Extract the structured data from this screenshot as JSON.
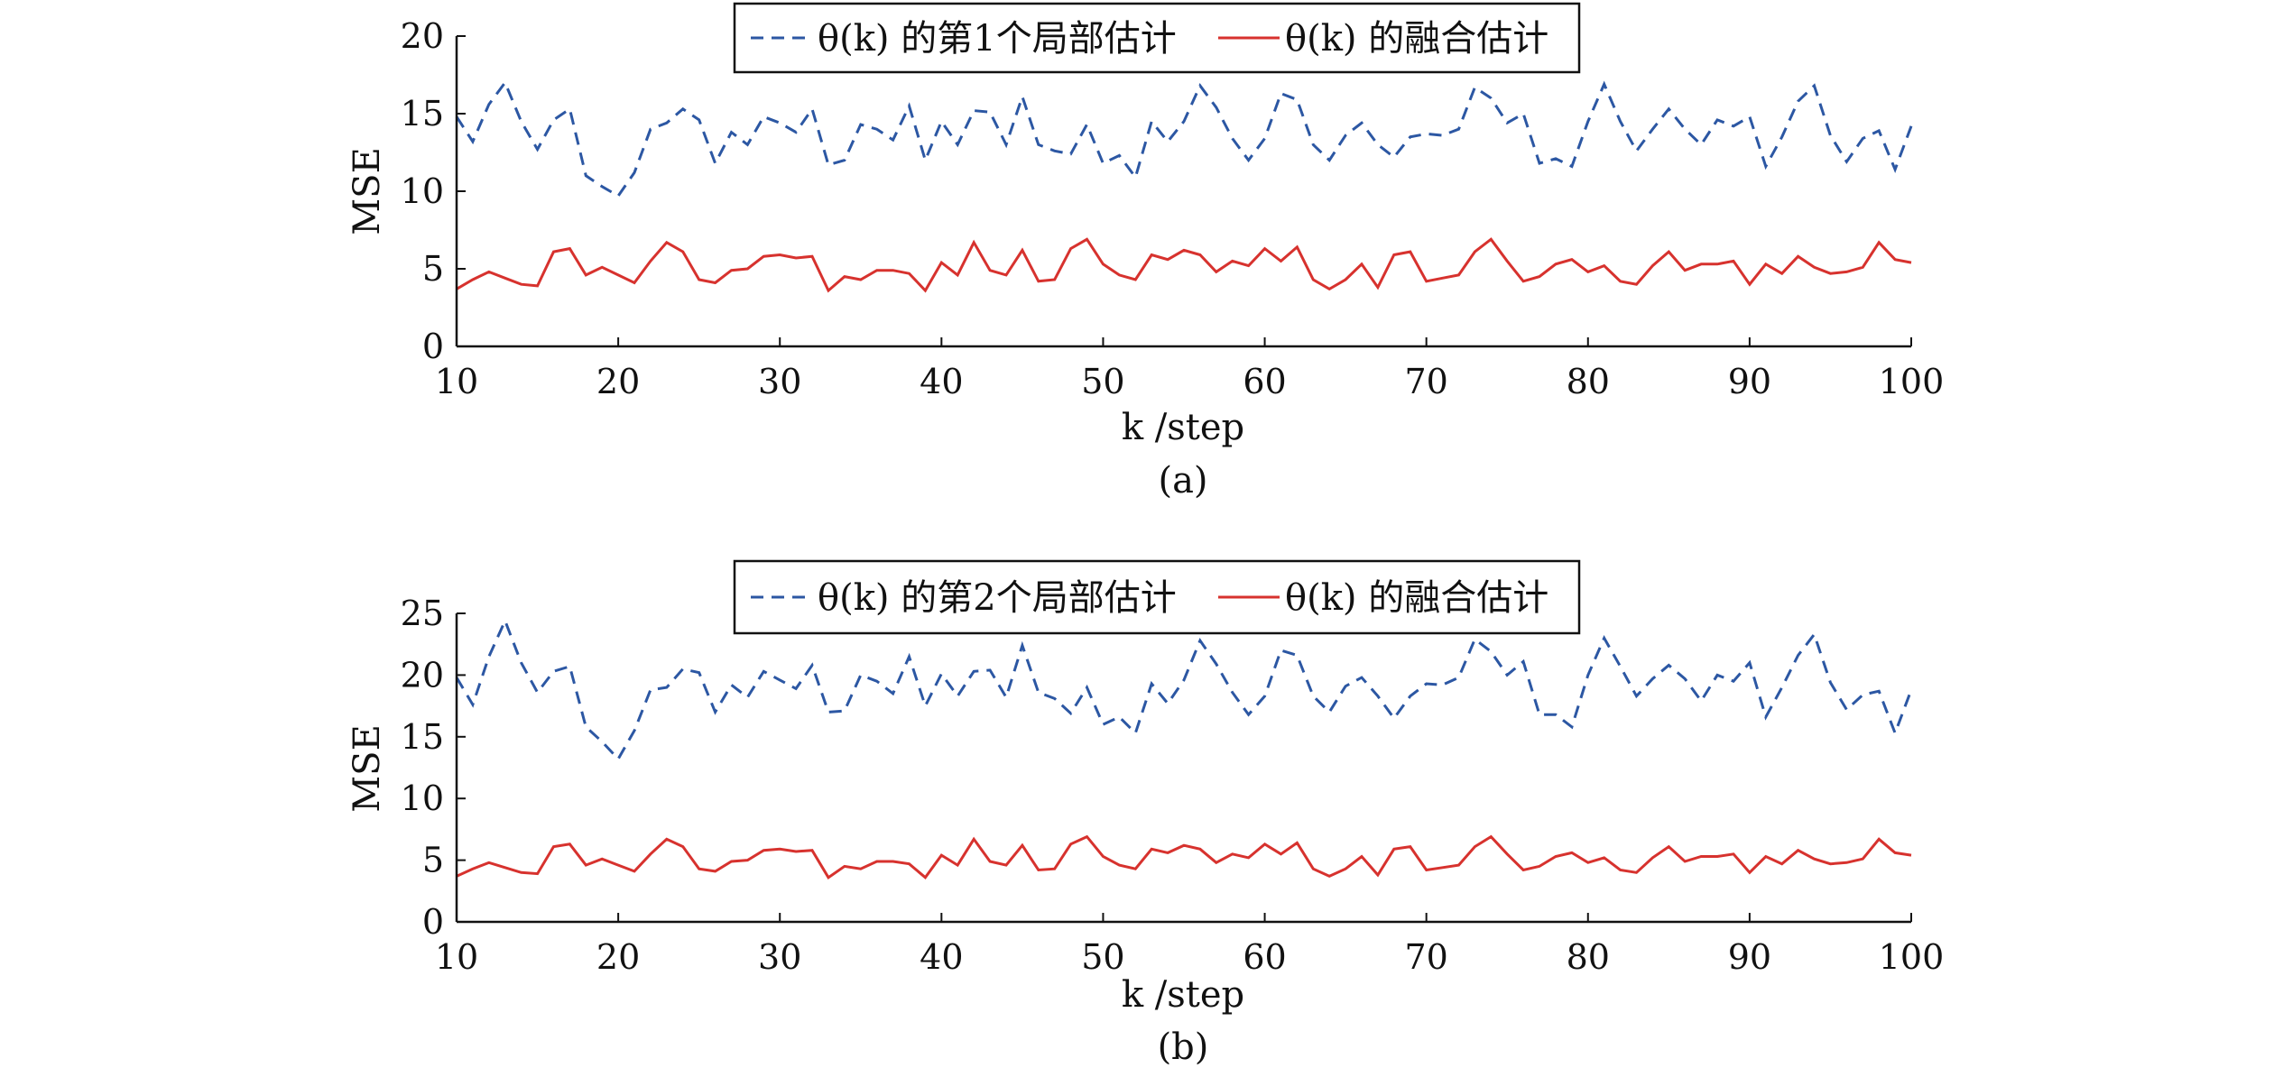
{
  "chart_data": [
    {
      "type": "line",
      "caption": "(a)",
      "xlabel": "k /step",
      "ylabel": "MSE",
      "xlim": [
        10,
        100
      ],
      "ylim": [
        0,
        20
      ],
      "xticks": [
        10,
        20,
        30,
        40,
        50,
        60,
        70,
        80,
        90,
        100
      ],
      "yticks": [
        0,
        5,
        10,
        15,
        20
      ],
      "legend_position": "top-center",
      "x": [
        10,
        11,
        12,
        13,
        14,
        15,
        16,
        17,
        18,
        19,
        20,
        21,
        22,
        23,
        24,
        25,
        26,
        27,
        28,
        29,
        30,
        31,
        32,
        33,
        34,
        35,
        36,
        37,
        38,
        39,
        40,
        41,
        42,
        43,
        44,
        45,
        46,
        47,
        48,
        49,
        50,
        51,
        52,
        53,
        54,
        55,
        56,
        57,
        58,
        59,
        60,
        61,
        62,
        63,
        64,
        65,
        66,
        67,
        68,
        69,
        70,
        71,
        72,
        73,
        74,
        75,
        76,
        77,
        78,
        79,
        80,
        81,
        82,
        83,
        84,
        85,
        86,
        87,
        88,
        89,
        90,
        91,
        92,
        93,
        94,
        95,
        96,
        97,
        98,
        99,
        100
      ],
      "series": [
        {
          "name": "θ(k) 的第1个局部估计",
          "color": "#2c57a3",
          "style": "dashed",
          "values": [
            14.8,
            13.2,
            15.6,
            17.0,
            14.5,
            12.7,
            14.6,
            15.3,
            11.0,
            10.3,
            9.7,
            11.2,
            14.0,
            14.4,
            15.3,
            14.6,
            11.8,
            13.8,
            13.0,
            14.8,
            14.4,
            13.8,
            15.3,
            11.7,
            12.0,
            14.3,
            14.0,
            13.3,
            15.5,
            12.0,
            14.5,
            13.0,
            15.2,
            15.1,
            13.0,
            16.1,
            13.0,
            12.6,
            12.4,
            14.3,
            11.8,
            12.3,
            10.9,
            14.5,
            13.2,
            14.5,
            16.8,
            15.4,
            13.4,
            12.0,
            13.4,
            16.3,
            15.9,
            13.0,
            12.0,
            13.6,
            14.4,
            13.0,
            12.2,
            13.5,
            13.7,
            13.6,
            14.0,
            16.7,
            16.0,
            14.4,
            15.0,
            11.8,
            12.1,
            11.6,
            14.5,
            16.9,
            14.5,
            12.6,
            14.0,
            15.3,
            14.0,
            13.0,
            14.6,
            14.2,
            14.8,
            11.6,
            13.5,
            15.8,
            16.8,
            13.6,
            11.9,
            13.4,
            13.9,
            11.4,
            14.2
          ]
        },
        {
          "name": "θ(k) 的融合估计",
          "color": "#d7322e",
          "style": "solid",
          "values": [
            3.7,
            4.3,
            4.8,
            4.4,
            4.0,
            3.9,
            6.1,
            6.3,
            4.6,
            5.1,
            4.6,
            4.1,
            5.5,
            6.7,
            6.1,
            4.3,
            4.1,
            4.9,
            5.0,
            5.8,
            5.9,
            5.7,
            5.8,
            3.6,
            4.5,
            4.3,
            4.9,
            4.9,
            4.7,
            3.6,
            5.4,
            4.6,
            6.7,
            4.9,
            4.6,
            6.2,
            4.2,
            4.3,
            6.3,
            6.9,
            5.3,
            4.6,
            4.3,
            5.9,
            5.6,
            6.2,
            5.9,
            4.8,
            5.5,
            5.2,
            6.3,
            5.5,
            6.4,
            4.3,
            3.7,
            4.3,
            5.3,
            3.8,
            5.9,
            6.1,
            4.2,
            4.4,
            4.6,
            6.1,
            6.9,
            5.5,
            4.2,
            4.5,
            5.3,
            5.6,
            4.8,
            5.2,
            4.2,
            4.0,
            5.2,
            6.1,
            4.9,
            5.3,
            5.3,
            5.5,
            4.0,
            5.3,
            4.7,
            5.8,
            5.1,
            4.7,
            4.8,
            5.1,
            6.7,
            5.6,
            5.4
          ]
        }
      ]
    },
    {
      "type": "line",
      "caption": "(b)",
      "xlabel": "k /step",
      "ylabel": "MSE",
      "xlim": [
        10,
        100
      ],
      "ylim": [
        0,
        25
      ],
      "xticks": [
        10,
        20,
        30,
        40,
        50,
        60,
        70,
        80,
        90,
        100
      ],
      "yticks": [
        0,
        5,
        10,
        15,
        20,
        25
      ],
      "legend_position": "top-center",
      "x": [
        10,
        11,
        12,
        13,
        14,
        15,
        16,
        17,
        18,
        19,
        20,
        21,
        22,
        23,
        24,
        25,
        26,
        27,
        28,
        29,
        30,
        31,
        32,
        33,
        34,
        35,
        36,
        37,
        38,
        39,
        40,
        41,
        42,
        43,
        44,
        45,
        46,
        47,
        48,
        49,
        50,
        51,
        52,
        53,
        54,
        55,
        56,
        57,
        58,
        59,
        60,
        61,
        62,
        63,
        64,
        65,
        66,
        67,
        68,
        69,
        70,
        71,
        72,
        73,
        74,
        75,
        76,
        77,
        78,
        79,
        80,
        81,
        82,
        83,
        84,
        85,
        86,
        87,
        88,
        89,
        90,
        91,
        92,
        93,
        94,
        95,
        96,
        97,
        98,
        99,
        100
      ],
      "series": [
        {
          "name": "θ(k) 的第2个局部估计",
          "color": "#2c57a3",
          "style": "dashed",
          "values": [
            19.8,
            17.6,
            21.5,
            24.4,
            21.0,
            18.6,
            20.3,
            20.7,
            15.8,
            14.6,
            13.2,
            15.5,
            18.8,
            19.0,
            20.5,
            20.2,
            17.0,
            19.2,
            18.2,
            20.3,
            19.6,
            18.9,
            20.8,
            17.0,
            17.1,
            20.0,
            19.5,
            18.5,
            21.5,
            17.5,
            20.1,
            18.3,
            20.3,
            20.4,
            18.2,
            22.4,
            18.6,
            18.1,
            16.9,
            19.0,
            16.0,
            16.6,
            15.3,
            19.3,
            17.7,
            19.6,
            22.8,
            20.9,
            18.6,
            16.8,
            18.3,
            22.0,
            21.6,
            18.3,
            17.0,
            19.1,
            19.8,
            18.3,
            16.5,
            18.3,
            19.3,
            19.2,
            19.8,
            22.9,
            21.9,
            20.0,
            21.1,
            16.8,
            16.8,
            15.8,
            20.0,
            23.0,
            20.7,
            18.3,
            19.7,
            20.8,
            19.7,
            17.9,
            20.0,
            19.5,
            21.0,
            16.6,
            19.0,
            21.6,
            23.3,
            19.4,
            17.2,
            18.4,
            18.7,
            15.3,
            18.8
          ]
        },
        {
          "name": "θ(k) 的融合估计",
          "color": "#d7322e",
          "style": "solid",
          "values": [
            3.7,
            4.3,
            4.8,
            4.4,
            4.0,
            3.9,
            6.1,
            6.3,
            4.6,
            5.1,
            4.6,
            4.1,
            5.5,
            6.7,
            6.1,
            4.3,
            4.1,
            4.9,
            5.0,
            5.8,
            5.9,
            5.7,
            5.8,
            3.6,
            4.5,
            4.3,
            4.9,
            4.9,
            4.7,
            3.6,
            5.4,
            4.6,
            6.7,
            4.9,
            4.6,
            6.2,
            4.2,
            4.3,
            6.3,
            6.9,
            5.3,
            4.6,
            4.3,
            5.9,
            5.6,
            6.2,
            5.9,
            4.8,
            5.5,
            5.2,
            6.3,
            5.5,
            6.4,
            4.3,
            3.7,
            4.3,
            5.3,
            3.8,
            5.9,
            6.1,
            4.2,
            4.4,
            4.6,
            6.1,
            6.9,
            5.5,
            4.2,
            4.5,
            5.3,
            5.6,
            4.8,
            5.2,
            4.2,
            4.0,
            5.2,
            6.1,
            4.9,
            5.3,
            5.3,
            5.5,
            4.0,
            5.3,
            4.7,
            5.8,
            5.1,
            4.7,
            4.8,
            5.1,
            6.7,
            5.6,
            5.4
          ]
        }
      ]
    }
  ]
}
